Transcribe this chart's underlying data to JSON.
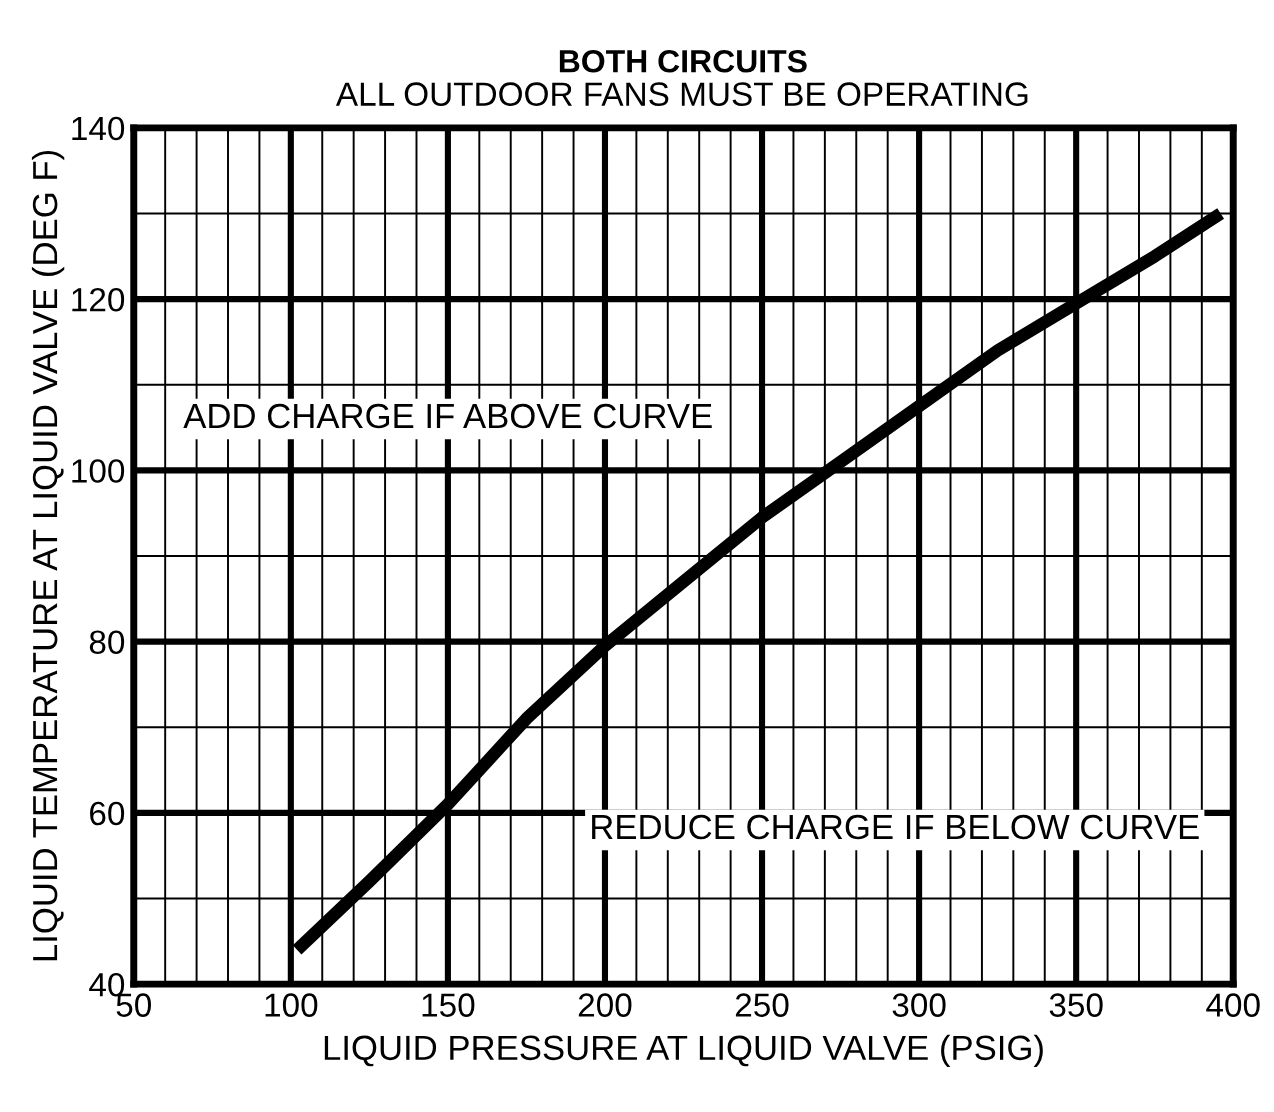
{
  "chart_data": {
    "type": "line",
    "title": "BOTH CIRCUITS",
    "subtitle": "ALL OUTDOOR FANS MUST BE OPERATING",
    "xlabel": "LIQUID PRESSURE AT LIQUID VALVE (PSIG)",
    "ylabel": "LIQUID TEMPERATURE AT LIQUID VALVE (DEG F)",
    "annotations": [
      "ADD CHARGE IF ABOVE CURVE",
      "REDUCE CHARGE IF BELOW CURVE"
    ],
    "series": [
      {
        "color": "#000000",
        "x": [
          102,
          125,
          150,
          175,
          200,
          225,
          250,
          275,
          300,
          325,
          350,
          375,
          396
        ],
        "values": [
          44,
          52,
          61,
          71,
          79.5,
          87,
          94.5,
          101,
          107.5,
          114,
          119.5,
          125,
          130
        ]
      }
    ],
    "xlim": [
      50,
      400
    ],
    "ylim": [
      40,
      140
    ],
    "xticks": [
      50,
      {
        "value": 60,
        "label": null
      },
      {
        "value": 70,
        "label": null
      },
      {
        "value": 80,
        "label": null
      },
      {
        "value": 90,
        "label": null
      },
      100,
      {
        "value": 110,
        "label": null
      },
      {
        "value": 120,
        "label": null
      },
      {
        "value": 130,
        "label": null
      },
      {
        "value": 140,
        "label": null
      },
      150,
      {
        "value": 160,
        "label": null
      },
      {
        "value": 170,
        "label": null
      },
      {
        "value": 180,
        "label": null
      },
      {
        "value": 190,
        "label": null
      },
      200,
      {
        "value": 210,
        "label": null
      },
      {
        "value": 220,
        "label": null
      },
      {
        "value": 230,
        "label": null
      },
      {
        "value": 240,
        "label": null
      },
      250,
      {
        "value": 260,
        "label": null
      },
      {
        "value": 270,
        "label": null
      },
      {
        "value": 280,
        "label": null
      },
      {
        "value": 290,
        "label": null
      },
      300,
      {
        "value": 310,
        "label": null
      },
      {
        "value": 320,
        "label": null
      },
      {
        "value": 330,
        "label": null
      },
      {
        "value": 340,
        "label": null
      },
      350,
      {
        "value": 360,
        "label": null
      },
      {
        "value": 370,
        "label": null
      },
      {
        "value": 380,
        "label": null
      },
      {
        "value": 390,
        "label": null
      },
      400
    ],
    "yticks": [
      40,
      {
        "value": 50,
        "label": null
      },
      60,
      {
        "value": 70,
        "label": null
      },
      80,
      {
        "value": 90,
        "label": null
      },
      100,
      {
        "value": 110,
        "label": null
      },
      120,
      {
        "value": 130,
        "label": null
      },
      140
    ],
    "grid": true,
    "legend": false,
    "marker": "none",
    "line_style": "solid"
  }
}
